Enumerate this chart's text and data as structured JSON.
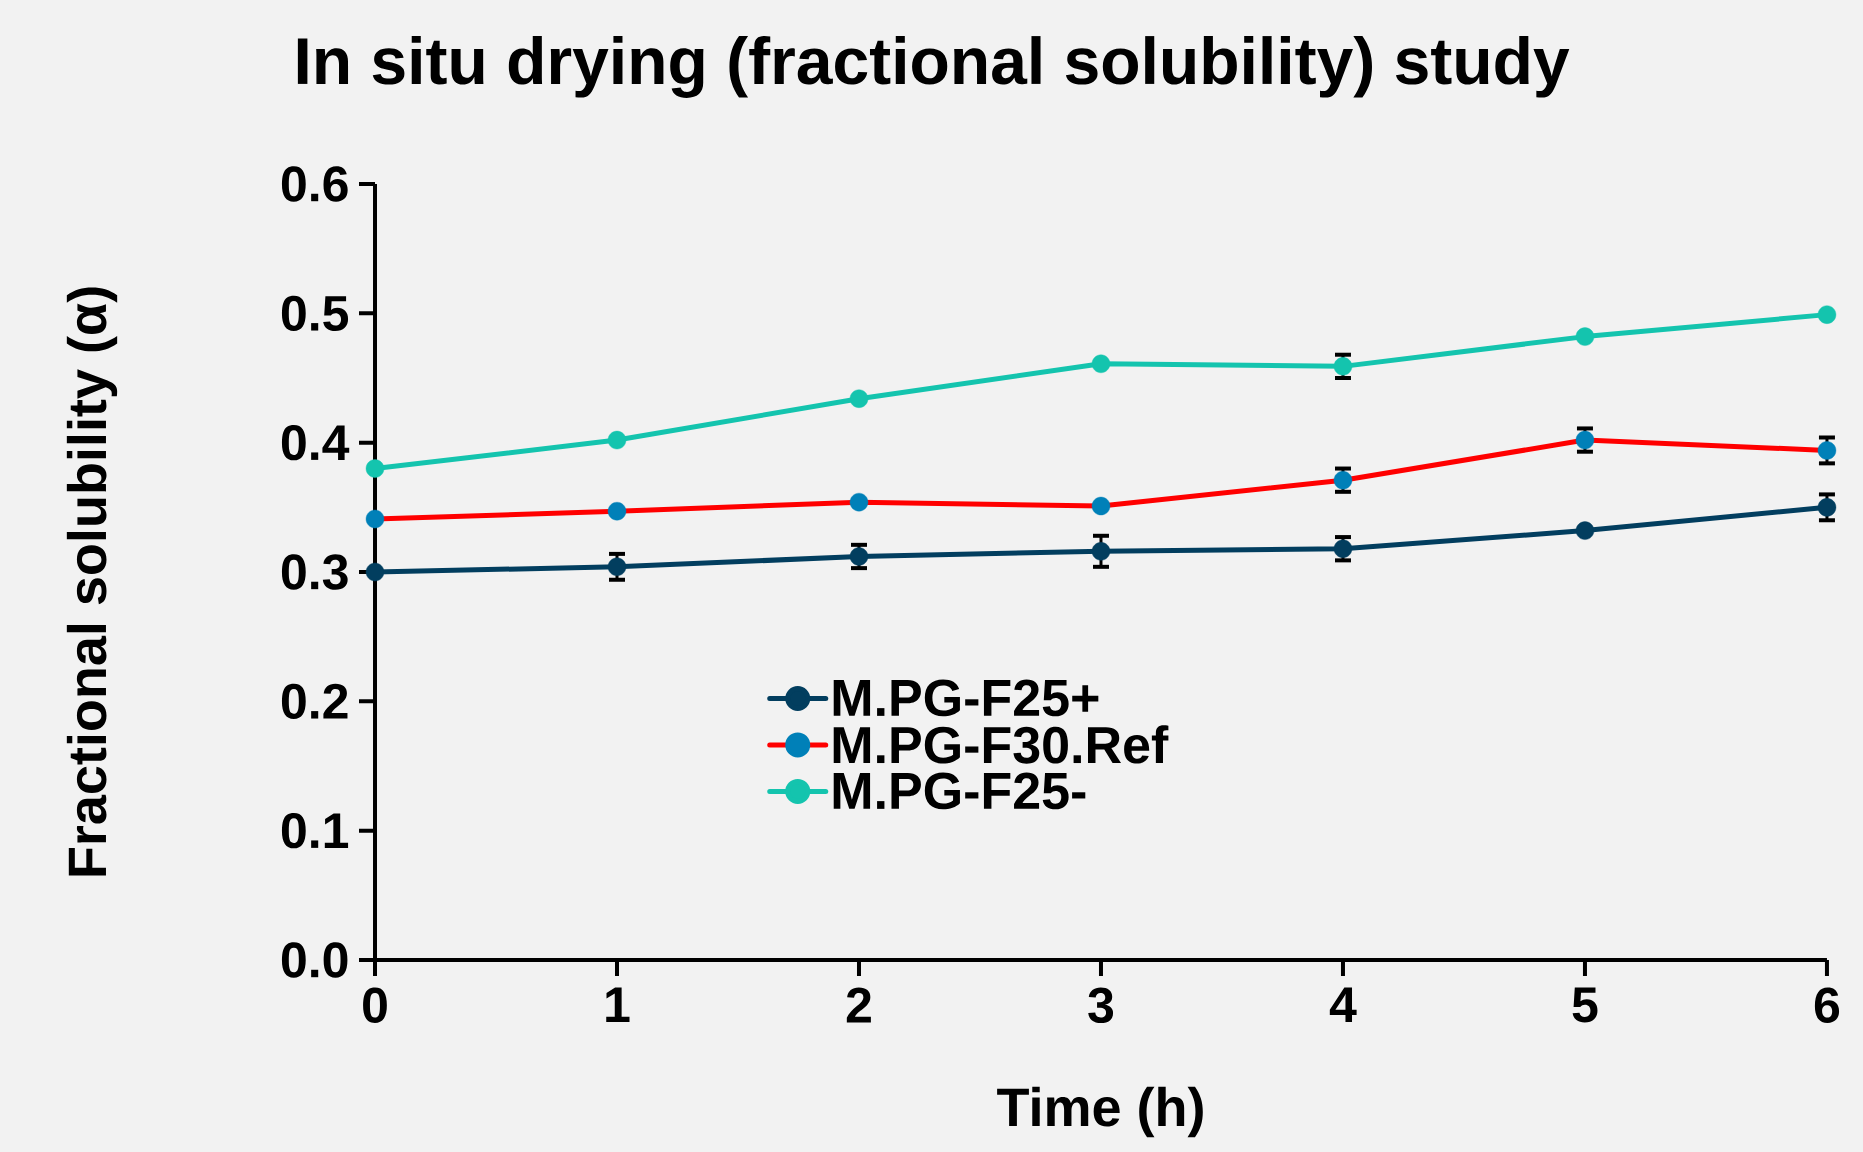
{
  "chart_data": {
    "type": "line",
    "title": "In situ drying (fractional solubility) study",
    "xlabel": "Time (h)",
    "ylabel": "Fractional solubility (α)",
    "x": [
      0,
      1,
      2,
      3,
      4,
      5,
      6
    ],
    "series": [
      {
        "name": "M.PG-F25+",
        "color": "#023e5f",
        "values": [
          0.3,
          0.304,
          0.312,
          0.316,
          0.318,
          0.332,
          0.35
        ],
        "errors": [
          null,
          0.01,
          0.009,
          0.012,
          0.009,
          null,
          0.01
        ]
      },
      {
        "name": "M.PG-F30.Ref",
        "color": "#ff0000",
        "colors": [
          "#0080b8",
          "#0080b8",
          "#0080b8",
          "#0080b8",
          "#0080b8",
          "#0080b8",
          "#0080b8"
        ],
        "values": [
          0.341,
          0.347,
          0.354,
          0.351,
          0.371,
          0.402,
          0.394
        ],
        "errors": [
          null,
          null,
          null,
          null,
          0.009,
          0.009,
          0.01
        ]
      },
      {
        "name": "M.PG-F25-",
        "color": "#14c4ae",
        "values": [
          0.38,
          0.402,
          0.434,
          0.461,
          0.459,
          0.482,
          0.499
        ],
        "errors": [
          null,
          null,
          null,
          null,
          0.009,
          null,
          null
        ]
      }
    ],
    "xlim": [
      0,
      6
    ],
    "xticks": [
      0,
      1,
      2,
      3,
      4,
      5,
      6
    ],
    "ylim": [
      0,
      0.6
    ],
    "yticks": [
      {
        "value": 0,
        "label": "0.0"
      },
      0.1,
      0.2,
      0.3,
      0.4,
      0.5,
      0.6
    ],
    "grid": false,
    "legend": "center",
    "marker": "circle",
    "line_style": "solid"
  }
}
